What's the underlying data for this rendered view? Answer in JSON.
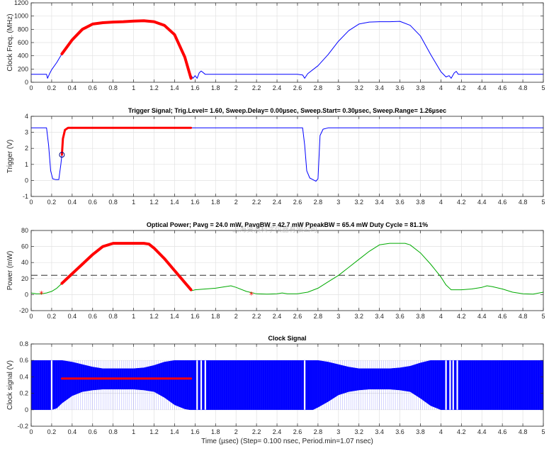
{
  "watermark": "上海贤澳科学仪器有限公司",
  "chart_data": [
    {
      "type": "line",
      "title": "",
      "xlabel": "",
      "ylabel": "Clock Freq. (MHz)",
      "xlim": [
        0,
        5
      ],
      "ylim": [
        0,
        1200
      ],
      "xticks": [
        "0",
        "0.2",
        "0.4",
        "0.6",
        "0.8",
        "1",
        "1.2",
        "1.4",
        "1.6",
        "1.8",
        "2",
        "2.2",
        "2.4",
        "2.6",
        "2.8",
        "3",
        "3.2",
        "3.4",
        "3.6",
        "3.8",
        "4",
        "4.2",
        "4.4",
        "4.6",
        "4.8",
        "5"
      ],
      "yticks": [
        "0",
        "200",
        "400",
        "600",
        "800",
        "1000",
        "1200"
      ],
      "grid": true,
      "series": [
        {
          "color": "#0000ff",
          "x": [
            0,
            0.15,
            0.16,
            0.18,
            0.2,
            0.25,
            0.3,
            0.4,
            0.5,
            0.6,
            0.7,
            0.8,
            0.9,
            1.0,
            1.1,
            1.2,
            1.3,
            1.4,
            1.5,
            1.55,
            1.58,
            1.6,
            1.62,
            1.64,
            1.66,
            1.7,
            2.0,
            2.5,
            2.6,
            2.65,
            2.67,
            2.7,
            2.8,
            2.9,
            3.0,
            3.1,
            3.2,
            3.3,
            3.4,
            3.5,
            3.6,
            3.7,
            3.8,
            3.9,
            4.0,
            4.05,
            4.08,
            4.1,
            4.13,
            4.15,
            4.17,
            4.2,
            4.5,
            5.0
          ],
          "y": [
            120,
            120,
            60,
            130,
            190,
            300,
            430,
            640,
            800,
            880,
            900,
            910,
            915,
            925,
            930,
            915,
            860,
            720,
            380,
            130,
            60,
            100,
            60,
            140,
            170,
            120,
            120,
            120,
            120,
            110,
            60,
            130,
            250,
            420,
            620,
            780,
            880,
            910,
            915,
            915,
            920,
            860,
            700,
            420,
            160,
            80,
            100,
            60,
            140,
            165,
            120,
            120,
            120,
            120
          ]
        },
        {
          "color": "#ff0000",
          "width": 4,
          "x": [
            0.3,
            0.4,
            0.5,
            0.6,
            0.7,
            0.8,
            0.9,
            1.0,
            1.1,
            1.2,
            1.3,
            1.4,
            1.5,
            1.56
          ],
          "y": [
            430,
            640,
            800,
            880,
            900,
            910,
            915,
            925,
            930,
            915,
            860,
            720,
            380,
            60
          ]
        }
      ]
    },
    {
      "type": "line",
      "title": "Trigger Signal; Trig.Level= 1.60, Sweep.Delay= 0.00µsec, Sweep.Start= 0.30µsec, Sweep.Range= 1.26µsec",
      "xlabel": "",
      "ylabel": "Trigger (V)",
      "xlim": [
        0,
        5
      ],
      "ylim": [
        -1,
        4
      ],
      "xticks": [
        "0",
        "0.2",
        "0.4",
        "0.6",
        "0.8",
        "1",
        "1.2",
        "1.4",
        "1.6",
        "1.8",
        "2",
        "2.2",
        "2.4",
        "2.6",
        "2.8",
        "3",
        "3.2",
        "3.4",
        "3.6",
        "3.8",
        "4",
        "4.2",
        "4.4",
        "4.6",
        "4.8",
        "5"
      ],
      "yticks": [
        "-1",
        "0",
        "1",
        "2",
        "3",
        "4"
      ],
      "grid": true,
      "marker": {
        "x": 0.3,
        "y": 1.6
      },
      "series": [
        {
          "color": "#0000ff",
          "x": [
            0,
            0.15,
            0.17,
            0.19,
            0.21,
            0.24,
            0.27,
            0.29,
            0.3,
            0.31,
            0.33,
            0.36,
            0.5,
            1.0,
            2.0,
            2.6,
            2.65,
            2.67,
            2.69,
            2.72,
            2.75,
            2.78,
            2.8,
            2.82,
            2.85,
            2.9,
            3.5,
            5.0
          ],
          "y": [
            3.28,
            3.28,
            2.2,
            0.6,
            0.1,
            0.05,
            0.05,
            1.0,
            1.6,
            2.6,
            3.15,
            3.28,
            3.28,
            3.28,
            3.28,
            3.28,
            3.28,
            2.2,
            0.6,
            0.15,
            0.05,
            -0.05,
            0.1,
            2.8,
            3.2,
            3.28,
            3.28,
            3.28
          ]
        },
        {
          "color": "#ff0000",
          "width": 3,
          "x": [
            0.3,
            0.31,
            0.33,
            0.36,
            0.5,
            1.0,
            1.56
          ],
          "y": [
            1.6,
            2.6,
            3.15,
            3.28,
            3.28,
            3.28,
            3.28
          ]
        }
      ]
    },
    {
      "type": "line",
      "title": "Optical Power;  Pavg = 24.0 mW, PavgBW = 42.7 mW PpeakBW = 65.4 mW Duty Cycle = 81.1%",
      "xlabel": "",
      "ylabel": "Power (mW)",
      "xlim": [
        0,
        5
      ],
      "ylim": [
        -20,
        80
      ],
      "xticks": [
        "0",
        "0.2",
        "0.4",
        "0.6",
        "0.8",
        "1",
        "1.2",
        "1.4",
        "1.6",
        "1.8",
        "2",
        "2.2",
        "2.4",
        "2.6",
        "2.8",
        "3",
        "3.2",
        "3.4",
        "3.6",
        "3.8",
        "4",
        "4.2",
        "4.4",
        "4.6",
        "4.8",
        "5"
      ],
      "yticks": [
        "-20",
        "0",
        "20",
        "40",
        "60",
        "80"
      ],
      "grid": true,
      "hline": 24.0,
      "points": [
        {
          "x": 0.1,
          "y": 0.5
        },
        {
          "x": 2.15,
          "y": -0.5
        }
      ],
      "series": [
        {
          "color": "#00aa00",
          "x": [
            0,
            0.05,
            0.1,
            0.15,
            0.2,
            0.25,
            0.3,
            0.4,
            0.5,
            0.6,
            0.7,
            0.8,
            0.9,
            1.0,
            1.1,
            1.15,
            1.2,
            1.3,
            1.4,
            1.5,
            1.55,
            1.57,
            1.6,
            1.7,
            1.8,
            1.9,
            1.95,
            2.0,
            2.1,
            2.2,
            2.3,
            2.4,
            2.45,
            2.5,
            2.6,
            2.7,
            2.8,
            2.9,
            3.0,
            3.1,
            3.2,
            3.3,
            3.4,
            3.5,
            3.6,
            3.65,
            3.7,
            3.8,
            3.9,
            4.0,
            4.05,
            4.1,
            4.2,
            4.3,
            4.4,
            4.45,
            4.5,
            4.6,
            4.7,
            4.8,
            4.9,
            5.0
          ],
          "y": [
            2,
            1,
            1,
            2,
            4,
            8,
            14,
            26,
            38,
            50,
            60,
            64,
            64,
            64,
            64,
            63,
            58,
            45,
            30,
            15,
            7,
            5,
            6,
            7,
            8,
            10,
            11,
            9,
            4,
            1,
            0.5,
            1,
            2,
            1,
            1,
            3,
            8,
            16,
            24,
            34,
            44,
            54,
            62,
            64,
            64,
            64,
            62,
            52,
            38,
            22,
            12,
            6,
            6,
            7,
            9,
            11,
            10,
            7,
            3,
            1,
            0.5,
            3
          ]
        },
        {
          "color": "#ff0000",
          "width": 4,
          "x": [
            0.3,
            0.4,
            0.5,
            0.6,
            0.7,
            0.8,
            0.9,
            1.0,
            1.1,
            1.15,
            1.2,
            1.3,
            1.4,
            1.5,
            1.56
          ],
          "y": [
            14,
            26,
            38,
            50,
            60,
            64,
            64,
            64,
            64,
            63,
            58,
            45,
            30,
            15,
            6
          ]
        }
      ]
    },
    {
      "type": "area",
      "title": "Clock Signal",
      "xlabel": "Time (µsec)  (Step= 0.100 nsec, Period.min=1.07 nsec)",
      "ylabel": "Clock signal (V)",
      "xlim": [
        0,
        5
      ],
      "ylim": [
        -0.2,
        0.8
      ],
      "xticks": [
        "0",
        "0.2",
        "0.4",
        "0.6",
        "0.8",
        "1",
        "1.2",
        "1.4",
        "1.6",
        "1.8",
        "2",
        "2.2",
        "2.4",
        "2.6",
        "2.8",
        "3",
        "3.2",
        "3.4",
        "3.6",
        "3.8",
        "4",
        "4.2",
        "4.4",
        "4.6",
        "4.8",
        "5"
      ],
      "yticks": [
        "-0.2",
        "0",
        "0.2",
        "0.4",
        "0.6",
        "0.8"
      ],
      "grid": true,
      "envelope": {
        "x": [
          0,
          0.2,
          0.25,
          0.3,
          0.4,
          0.5,
          0.6,
          0.7,
          0.8,
          0.9,
          1.0,
          1.1,
          1.2,
          1.3,
          1.4,
          1.5,
          1.55,
          1.6,
          1.7,
          2.0,
          2.6,
          2.7,
          2.75,
          2.8,
          2.9,
          3.0,
          3.1,
          3.2,
          3.3,
          3.4,
          3.5,
          3.6,
          3.7,
          3.8,
          3.9,
          4.0,
          4.05,
          4.1,
          4.2,
          4.5,
          5.0
        ],
        "top": [
          0.6,
          0.6,
          0.6,
          0.6,
          0.58,
          0.55,
          0.52,
          0.5,
          0.5,
          0.5,
          0.5,
          0.51,
          0.54,
          0.58,
          0.6,
          0.6,
          0.6,
          0.6,
          0.6,
          0.6,
          0.6,
          0.6,
          0.6,
          0.6,
          0.58,
          0.55,
          0.52,
          0.5,
          0.5,
          0.5,
          0.5,
          0.51,
          0.53,
          0.57,
          0.6,
          0.6,
          0.6,
          0.6,
          0.6,
          0.6,
          0.6
        ],
        "bottom": [
          0,
          0,
          0.02,
          0.08,
          0.17,
          0.22,
          0.24,
          0.25,
          0.25,
          0.25,
          0.25,
          0.24,
          0.22,
          0.15,
          0.06,
          0.01,
          0,
          0,
          0,
          0,
          0,
          0,
          0,
          0.03,
          0.1,
          0.18,
          0.22,
          0.24,
          0.25,
          0.25,
          0.25,
          0.24,
          0.22,
          0.14,
          0.05,
          0,
          0,
          0,
          0,
          0,
          0
        ]
      },
      "gaps": [
        0.2,
        1.62,
        1.66,
        1.7,
        2.67,
        4.05,
        4.09,
        4.12,
        4.16
      ],
      "series": [
        {
          "color": "#ff0000",
          "width": 3,
          "x": [
            0.3,
            1.56
          ],
          "y": [
            0.38,
            0.38
          ]
        }
      ]
    }
  ]
}
